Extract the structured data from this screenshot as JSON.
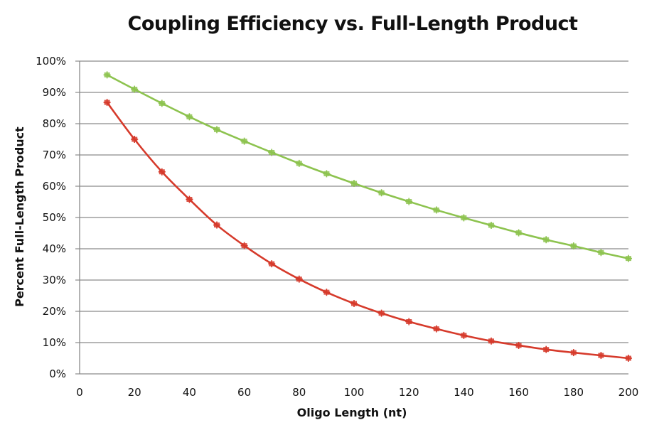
{
  "chart_data": {
    "type": "line",
    "title": "Coupling Efficiency vs. Full-Length Product",
    "xlabel": "Oligo Length (nt)",
    "ylabel": "Percent Full-Length Product",
    "xlim": [
      0,
      200
    ],
    "ylim": [
      0,
      100
    ],
    "xticks": [
      0,
      20,
      40,
      60,
      80,
      100,
      120,
      140,
      160,
      180,
      200
    ],
    "yticks": [
      0,
      10,
      20,
      30,
      40,
      50,
      60,
      70,
      80,
      90,
      100
    ],
    "yticks_labels": [
      "0%",
      "10%",
      "20%",
      "30%",
      "40%",
      "50%",
      "60%",
      "70%",
      "80%",
      "90%",
      "100%"
    ],
    "grid": true,
    "legend": "none",
    "x": [
      10,
      20,
      30,
      40,
      50,
      60,
      70,
      80,
      90,
      100,
      110,
      120,
      130,
      140,
      150,
      160,
      170,
      180,
      190,
      200
    ],
    "series": [
      {
        "name": "series-green",
        "color": "#8dc34f",
        "values": [
          95.6,
          91.0,
          86.5,
          82.2,
          78.1,
          74.4,
          70.8,
          67.3,
          64.0,
          60.9,
          57.9,
          55.1,
          52.4,
          49.9,
          47.5,
          45.1,
          42.9,
          40.9,
          38.8,
          36.9
        ]
      },
      {
        "name": "series-red",
        "color": "#d63a2b",
        "values": [
          86.8,
          75.0,
          64.6,
          55.8,
          47.6,
          41.0,
          35.2,
          30.3,
          26.1,
          22.5,
          19.4,
          16.7,
          14.4,
          12.3,
          10.5,
          9.1,
          7.8,
          6.8,
          5.9,
          5.0
        ]
      }
    ]
  }
}
